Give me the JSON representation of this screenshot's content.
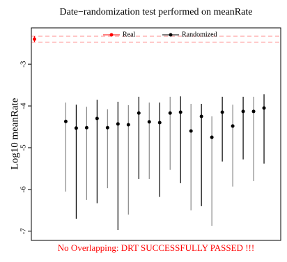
{
  "chart_data": {
    "type": "errorbar",
    "title": "Date−randomization test performed on meanRate",
    "y_label": "Log10 meanRate",
    "footer": "No Overlapping: DRT SUCCESSFULLY PASSED !!!",
    "xlim": [
      0.7,
      24.6
    ],
    "ylim": [
      -7.22,
      -2.13
    ],
    "yticks": [
      -3,
      -4,
      -5,
      -6,
      -7
    ],
    "legend": "top",
    "series": [
      {
        "name": "Real",
        "color": "#ff0000",
        "x": [
          1
        ],
        "values": [
          -2.4
        ],
        "upper": [
          -2.33
        ],
        "lower": [
          -2.47
        ]
      },
      {
        "name": "Randomized",
        "color": "#000000",
        "x": [
          4,
          5,
          6,
          7,
          8,
          9,
          10,
          11,
          12,
          13,
          14,
          15,
          16,
          17,
          18,
          19,
          20,
          21,
          22,
          23
        ],
        "values": [
          -4.37,
          -4.53,
          -4.52,
          -4.3,
          -4.52,
          -4.43,
          -4.45,
          -4.17,
          -4.38,
          -4.4,
          -4.17,
          -4.15,
          -4.6,
          -4.25,
          -4.75,
          -4.15,
          -4.48,
          -4.13,
          -4.13,
          -4.05
        ],
        "upper": [
          -3.92,
          -3.97,
          -4.02,
          -3.85,
          -4.08,
          -3.9,
          -3.98,
          -3.78,
          -3.92,
          -3.92,
          -3.78,
          -3.77,
          -3.95,
          -3.95,
          -4.25,
          -3.78,
          -3.97,
          -3.78,
          -3.78,
          -3.72
        ],
        "lower": [
          -6.05,
          -6.7,
          -6.25,
          -6.33,
          -5.97,
          -6.97,
          -6.6,
          -5.75,
          -5.75,
          -6.18,
          -5.53,
          -5.85,
          -6.5,
          -6.4,
          -6.87,
          -5.33,
          -5.93,
          -5.28,
          -5.8,
          -5.38
        ]
      }
    ]
  }
}
